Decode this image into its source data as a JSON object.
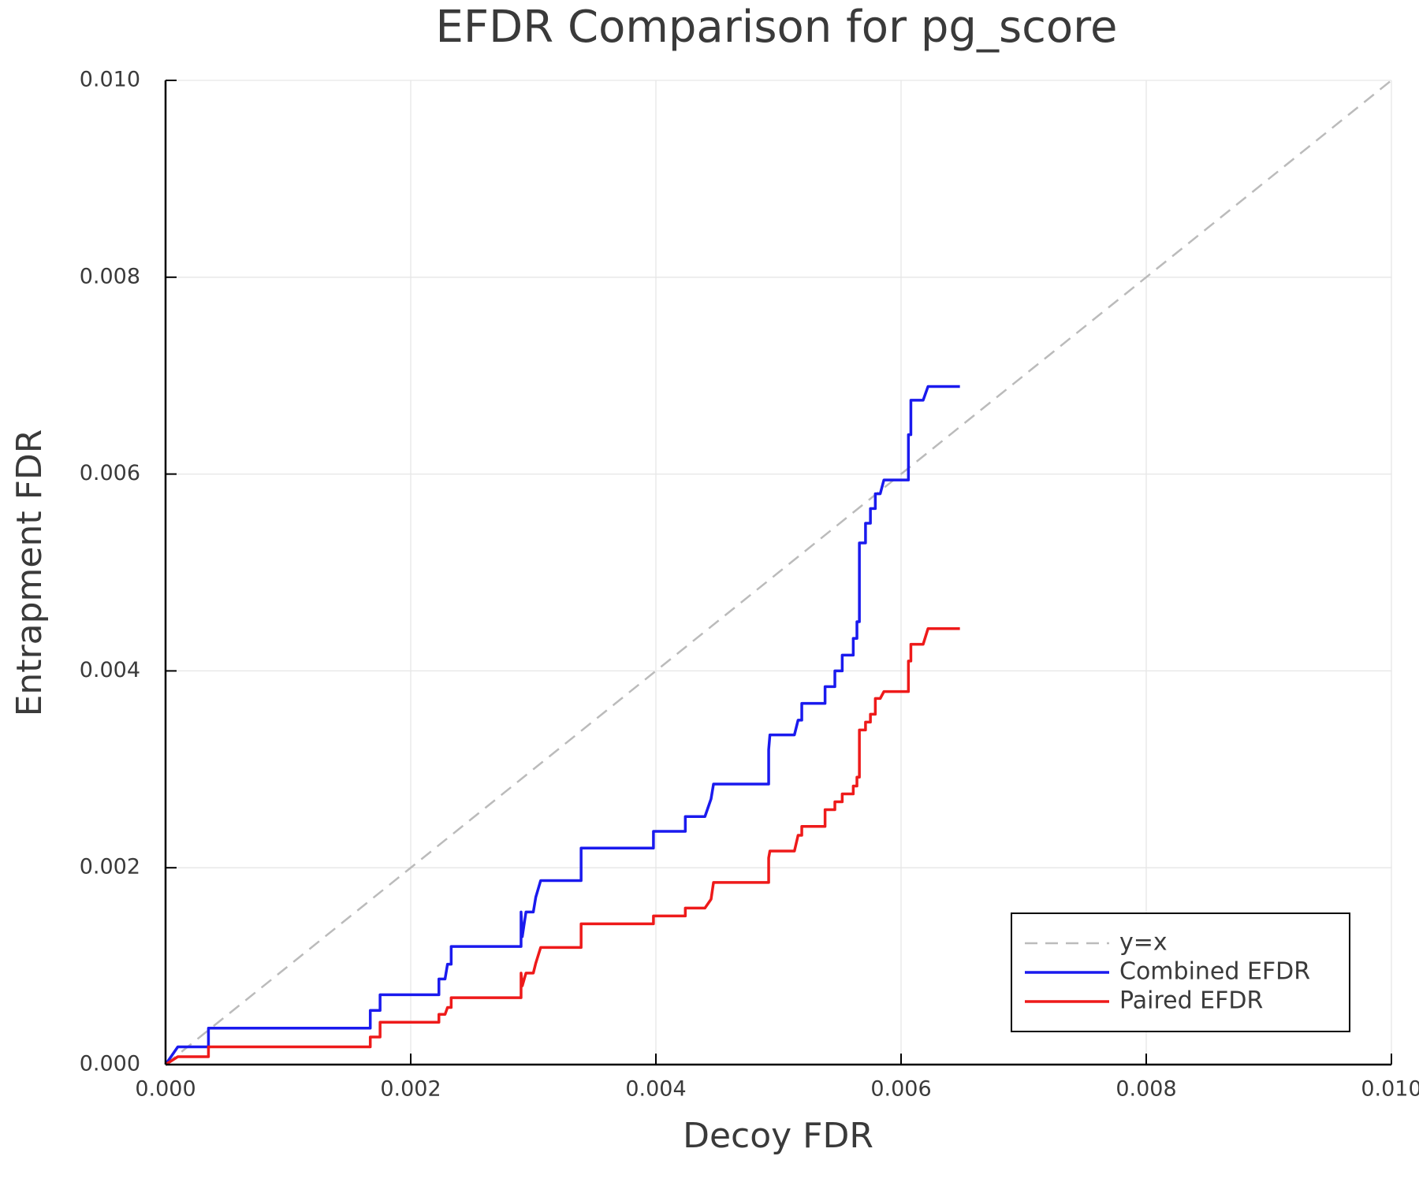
{
  "chart_data": {
    "type": "line",
    "title": "EFDR Comparison for pg_score",
    "x_label": "Decoy FDR",
    "y_label": "Entrapment FDR",
    "xlim": [
      0,
      0.01
    ],
    "ylim": [
      0,
      0.01
    ],
    "xticks": [
      {
        "value": 0,
        "label": "0.000"
      },
      0.002,
      0.004,
      0.006,
      0.008,
      {
        "value": 0.01,
        "label": "0.010"
      }
    ],
    "yticks": [
      {
        "value": 0,
        "label": "0.000"
      },
      0.002,
      0.004,
      0.006,
      0.008,
      {
        "value": 0.01,
        "label": "0.010"
      }
    ],
    "grid": true,
    "legend": "bottom-right",
    "series": [
      {
        "name": "y=x",
        "color": "#bbbbbb",
        "dash": true,
        "x": [
          0,
          0.01
        ],
        "values": [
          0,
          0.01
        ]
      },
      {
        "name": "Combined EFDR",
        "color": "#1a1aee",
        "x": [
          0,
          0.0001,
          0.00035,
          0.00035,
          0.00167,
          0.00167,
          0.00175,
          0.00175,
          0.00223,
          0.00223,
          0.00228,
          0.0023,
          0.00233,
          0.00233,
          0.0029,
          0.0029,
          0.00291,
          0.00294,
          0.003,
          0.00302,
          0.00306,
          0.00339,
          0.00339,
          0.00398,
          0.00398,
          0.00424,
          0.00424,
          0.0044,
          0.00445,
          0.00447,
          0.00492,
          0.00492,
          0.00493,
          0.00513,
          0.00516,
          0.00519,
          0.00519,
          0.00538,
          0.00538,
          0.00546,
          0.00546,
          0.00552,
          0.00552,
          0.00561,
          0.00561,
          0.00564,
          0.00564,
          0.00566,
          0.00566,
          0.00571,
          0.00571,
          0.00575,
          0.00575,
          0.00579,
          0.00579,
          0.00583,
          0.00586,
          0.00606,
          0.00606,
          0.00608,
          0.00608,
          0.00618,
          0.00622,
          0.00648
        ],
        "values": [
          0,
          0.00018,
          0.00018,
          0.00037,
          0.00037,
          0.00055,
          0.00055,
          0.00071,
          0.00071,
          0.00087,
          0.00087,
          0.00102,
          0.00102,
          0.0012,
          0.0012,
          0.00155,
          0.0013,
          0.00155,
          0.00155,
          0.0017,
          0.00187,
          0.00187,
          0.0022,
          0.0022,
          0.00237,
          0.00237,
          0.00252,
          0.00252,
          0.0027,
          0.00285,
          0.00285,
          0.0032,
          0.00335,
          0.00335,
          0.0035,
          0.0035,
          0.00367,
          0.00367,
          0.00384,
          0.00384,
          0.004,
          0.004,
          0.00416,
          0.00416,
          0.00433,
          0.00433,
          0.0045,
          0.0045,
          0.0053,
          0.0053,
          0.0055,
          0.0055,
          0.00565,
          0.00565,
          0.0058,
          0.0058,
          0.00594,
          0.00594,
          0.0064,
          0.0064,
          0.00675,
          0.00675,
          0.00689,
          0.00689
        ]
      },
      {
        "name": "Paired EFDR",
        "color": "#ee1a1a",
        "x": [
          0,
          0.0001,
          0.00035,
          0.00035,
          0.00167,
          0.00167,
          0.00175,
          0.00175,
          0.00223,
          0.00223,
          0.00228,
          0.0023,
          0.00233,
          0.00233,
          0.0029,
          0.0029,
          0.00291,
          0.00294,
          0.003,
          0.00302,
          0.00306,
          0.00339,
          0.00339,
          0.00398,
          0.00398,
          0.00424,
          0.00424,
          0.0044,
          0.00445,
          0.00447,
          0.00492,
          0.00492,
          0.00493,
          0.00513,
          0.00516,
          0.00519,
          0.00519,
          0.00538,
          0.00538,
          0.00546,
          0.00546,
          0.00552,
          0.00552,
          0.00561,
          0.00561,
          0.00564,
          0.00564,
          0.00566,
          0.00566,
          0.00571,
          0.00571,
          0.00575,
          0.00575,
          0.00579,
          0.00579,
          0.00583,
          0.00586,
          0.00606,
          0.00606,
          0.00608,
          0.00608,
          0.00618,
          0.00622,
          0.00648
        ],
        "values": [
          0,
          8e-05,
          8e-05,
          0.00018,
          0.00018,
          0.00028,
          0.00028,
          0.00043,
          0.00043,
          0.00051,
          0.00051,
          0.00058,
          0.00058,
          0.00068,
          0.00068,
          0.00093,
          0.0008,
          0.00093,
          0.00093,
          0.00103,
          0.00119,
          0.00119,
          0.00143,
          0.00143,
          0.00151,
          0.00151,
          0.00159,
          0.00159,
          0.00168,
          0.00185,
          0.00185,
          0.0021,
          0.00217,
          0.00217,
          0.00233,
          0.00233,
          0.00242,
          0.00242,
          0.00259,
          0.00259,
          0.00267,
          0.00267,
          0.00275,
          0.00275,
          0.00283,
          0.00283,
          0.00292,
          0.00292,
          0.0034,
          0.0034,
          0.00348,
          0.00348,
          0.00356,
          0.00356,
          0.00372,
          0.00372,
          0.00379,
          0.00379,
          0.0041,
          0.0041,
          0.00427,
          0.00427,
          0.00443,
          0.00443
        ]
      }
    ]
  }
}
